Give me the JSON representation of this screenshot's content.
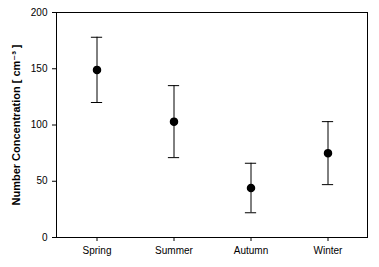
{
  "chart_data": {
    "type": "scatter",
    "categories": [
      "Spring",
      "Summer",
      "Autumn",
      "Winter"
    ],
    "values": [
      149,
      103,
      44,
      75
    ],
    "error": [
      29,
      32,
      22,
      28
    ],
    "y_label": "Number Concentration [ cm⁻³ ]",
    "ylim": [
      0,
      200
    ],
    "yticks": [
      0,
      50,
      100,
      150,
      200
    ],
    "color": "#000000",
    "marker": "circle",
    "grid": false
  }
}
